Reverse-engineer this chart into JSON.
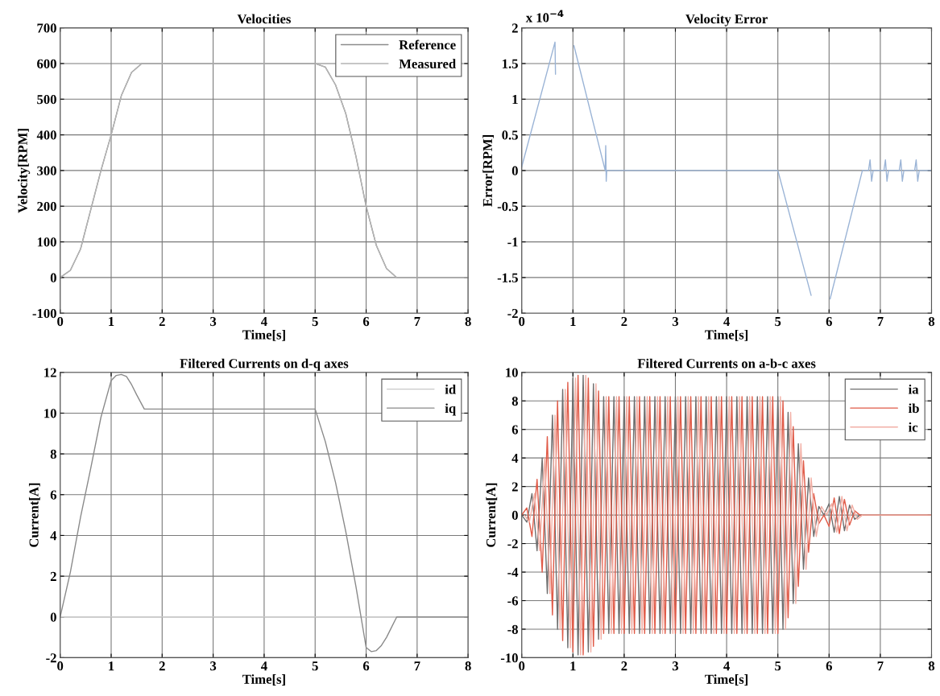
{
  "chart_data": [
    {
      "type": "line",
      "title": "Velocities",
      "xlabel": "Time[s]",
      "ylabel": "Velocity[RPM]",
      "x": [
        0,
        0.2,
        0.4,
        0.6,
        0.8,
        1.0,
        1.2,
        1.4,
        1.6,
        5.0,
        5.2,
        5.4,
        5.6,
        5.8,
        6.0,
        6.2,
        6.4,
        6.6,
        8.0
      ],
      "series": [
        {
          "name": "Reference",
          "color": "#8c8c8c",
          "values": [
            0,
            20,
            80,
            190,
            300,
            400,
            510,
            575,
            600,
            600,
            590,
            540,
            460,
            340,
            200,
            90,
            25,
            0,
            0
          ]
        },
        {
          "name": "Measured",
          "color": "#b4b4b4",
          "values": [
            0,
            20,
            80,
            190,
            300,
            400,
            510,
            575,
            600,
            600,
            590,
            540,
            460,
            340,
            200,
            90,
            25,
            0,
            0
          ]
        }
      ],
      "xlim": [
        0,
        8
      ],
      "ylim": [
        -100,
        700
      ],
      "xticks": [
        0,
        1,
        2,
        3,
        4,
        5,
        6,
        7,
        8
      ],
      "yticks": [
        -100,
        0,
        100,
        200,
        300,
        400,
        500,
        600,
        700
      ],
      "grid": true,
      "legend": "top right"
    },
    {
      "type": "line",
      "title": "Velocity Error",
      "xlabel": "Time[s]",
      "ylabel": "Error[RPM]",
      "annotations": [
        "x 10$^{−4}$"
      ],
      "x": [
        0,
        0.65,
        0.66,
        0.8,
        1.02,
        1.63,
        1.64,
        1.65,
        1.66,
        5.0,
        5.65,
        5.8,
        6.02,
        6.65,
        6.77,
        6.8,
        6.83,
        6.86,
        7.07,
        7.1,
        7.13,
        7.16,
        7.37,
        7.4,
        7.43,
        7.46,
        7.67,
        7.7,
        7.73,
        7.76,
        8.0
      ],
      "series": [
        {
          "color": "#9bb4d6",
          "values": [
            0.05,
            1.8,
            1.35,
            null,
            1.75,
            0,
            0.35,
            -0.15,
            0,
            0,
            -1.75,
            null,
            -1.8,
            0,
            0,
            0.15,
            -0.15,
            0,
            0,
            0.15,
            -0.15,
            0,
            0,
            0.15,
            -0.15,
            0,
            0,
            0.15,
            -0.15,
            0,
            0
          ]
        }
      ],
      "xlim": [
        0,
        8
      ],
      "ylim": [
        -2,
        2
      ],
      "xticks": [
        0,
        1,
        2,
        3,
        4,
        5,
        6,
        7,
        8
      ],
      "yticks": [
        -2,
        -1.5,
        -1,
        -0.5,
        0,
        0.5,
        1,
        1.5,
        2
      ],
      "grid": true
    },
    {
      "type": "line",
      "title": "Filtered Currents on d-q axes",
      "xlabel": "Time[s]",
      "ylabel": "Current[A]",
      "x": [
        0,
        0.2,
        0.4,
        0.6,
        0.8,
        1.0,
        1.1,
        1.2,
        1.3,
        1.4,
        1.5,
        1.65,
        3.0,
        5.0,
        5.2,
        5.4,
        5.6,
        5.8,
        6.0,
        6.1,
        6.2,
        6.3,
        6.4,
        6.5,
        6.6,
        8.0
      ],
      "series": [
        {
          "name": "id",
          "color": "#c8c8c8",
          "x": [
            0,
            8
          ],
          "values": [
            0,
            0
          ]
        },
        {
          "name": "iq",
          "color": "#8a8a8a",
          "values": [
            0,
            2.2,
            4.9,
            7.3,
            9.8,
            11.6,
            11.85,
            11.9,
            11.8,
            11.4,
            10.9,
            10.2,
            10.2,
            10.2,
            8.6,
            6.6,
            4.2,
            1.5,
            -1.5,
            -1.7,
            -1.65,
            -1.4,
            -1.0,
            -0.5,
            0,
            0
          ]
        }
      ],
      "xlim": [
        0,
        8
      ],
      "ylim": [
        -2,
        12
      ],
      "xticks": [
        0,
        1,
        2,
        3,
        4,
        5,
        6,
        7,
        8
      ],
      "yticks": [
        -2,
        0,
        2,
        4,
        6,
        8,
        10,
        12
      ],
      "grid": true,
      "legend": "top right"
    },
    {
      "type": "line",
      "title": "Filtered Currents on a-b-c axes",
      "xlabel": "Time[s]",
      "ylabel": "Current[A]",
      "x": [
        0,
        0.1,
        0.2,
        0.3,
        0.4,
        0.5,
        0.6,
        0.7,
        0.8,
        0.9,
        1.0,
        1.1,
        1.2,
        1.3,
        1.4,
        1.5,
        1.6,
        1.7,
        1.8,
        1.9,
        2.0,
        2.1,
        2.2,
        2.3,
        2.4,
        2.5,
        2.6,
        2.7,
        2.8,
        2.9,
        3.0,
        3.1,
        3.2,
        3.3,
        3.4,
        3.5,
        3.6,
        3.7,
        3.8,
        3.9,
        4.0,
        4.1,
        4.2,
        4.3,
        4.4,
        4.5,
        4.6,
        4.7,
        4.8,
        4.9,
        5.0,
        5.1,
        5.2,
        5.3,
        5.4,
        5.5,
        5.6,
        5.7,
        5.8,
        5.9,
        6.0,
        6.1,
        6.2,
        6.3,
        6.4,
        6.5,
        6.6,
        8.0
      ],
      "series": [
        {
          "name": "ia",
          "color": "#6e6e6e",
          "values": [
            0,
            -0.5,
            1.5,
            -2.5,
            4,
            -5.5,
            7,
            -8,
            8.8,
            -9.3,
            9.6,
            -9.8,
            9.8,
            -9.6,
            9.2,
            -8.7,
            8.3,
            -8.3,
            8.3,
            -8.3,
            8.3,
            -8.3,
            8.3,
            -8.3,
            8.3,
            -8.3,
            8.3,
            -8.3,
            8.3,
            -8.3,
            8.3,
            -8.3,
            8.3,
            -8.3,
            8.3,
            -8.3,
            8.3,
            -8.3,
            8.3,
            -8.3,
            8.3,
            -8.3,
            8.3,
            -8.3,
            8.3,
            -8.3,
            8.3,
            -8.3,
            8.3,
            -8.3,
            8.3,
            -8,
            7.2,
            -6.2,
            5,
            -3.8,
            2.6,
            -1.5,
            0.6,
            0,
            0.8,
            -1.2,
            1.3,
            -1.1,
            0.7,
            -0.3,
            0,
            0
          ]
        },
        {
          "name": "ib",
          "color": "#e05a47",
          "values": [
            0,
            0.5,
            -1.5,
            2.5,
            -4,
            5.5,
            -7,
            8,
            -8.8,
            9.3,
            -9.6,
            9.8,
            -9.8,
            9.6,
            -9.2,
            8.7,
            -8.3,
            8.3,
            -8.3,
            8.3,
            -8.3,
            8.3,
            -8.3,
            8.3,
            -8.3,
            8.3,
            -8.3,
            8.3,
            -8.3,
            8.3,
            -8.3,
            8.3,
            -8.3,
            8.3,
            -8.3,
            8.3,
            -8.3,
            8.3,
            -8.3,
            8.3,
            -8.3,
            8.3,
            -8.3,
            8.3,
            -8.3,
            8.3,
            -8.3,
            8.3,
            -8.3,
            8.3,
            -8.3,
            8,
            -7.2,
            6.2,
            -5,
            3.8,
            -2.6,
            1.5,
            -0.6,
            0,
            -0.8,
            1.2,
            -1.3,
            1.1,
            -0.7,
            0.3,
            0,
            0
          ]
        },
        {
          "name": "ic",
          "color": "#f2b0a6",
          "x": [
            0.05,
            0.15,
            0.25,
            0.35,
            0.45,
            0.55,
            0.65,
            0.75,
            0.85,
            0.95,
            1.05,
            1.15,
            1.25,
            1.35,
            1.45,
            1.55,
            1.65,
            1.75,
            1.85,
            1.95,
            2.05,
            2.15,
            2.25,
            2.35,
            2.45,
            2.55,
            2.65,
            2.75,
            2.85,
            2.95,
            3.05,
            3.15,
            3.25,
            3.35,
            3.45,
            3.55,
            3.65,
            3.75,
            3.85,
            3.95,
            4.05,
            4.15,
            4.25,
            4.35,
            4.45,
            4.55,
            4.65,
            4.75,
            4.85,
            4.95,
            5.05,
            5.15,
            5.25,
            5.35,
            5.45,
            5.55,
            5.65,
            5.75,
            5.85,
            5.95,
            6.05,
            6.15,
            6.25,
            6.35,
            6.45,
            6.55,
            6.65,
            8.0
          ],
          "values": [
            0,
            -0.5,
            1.5,
            -2.5,
            4,
            -5.5,
            7,
            -8,
            8.8,
            -9.3,
            9.6,
            -9.8,
            9.8,
            -9.6,
            9.2,
            -8.7,
            8.3,
            -8.3,
            8.3,
            -8.3,
            8.3,
            -8.3,
            8.3,
            -8.3,
            8.3,
            -8.3,
            8.3,
            -8.3,
            8.3,
            -8.3,
            8.3,
            -8.3,
            8.3,
            -8.3,
            8.3,
            -8.3,
            8.3,
            -8.3,
            8.3,
            -8.3,
            8.3,
            -8.3,
            8.3,
            -8.3,
            8.3,
            -8.3,
            8.3,
            -8.3,
            8.3,
            -8.3,
            8.3,
            -8,
            7.2,
            -6.2,
            5,
            -3.8,
            2.6,
            -1.5,
            0.6,
            0,
            0.8,
            -1.2,
            1.3,
            -1.1,
            0.7,
            -0.3,
            0,
            0
          ]
        }
      ],
      "xlim": [
        0,
        8
      ],
      "ylim": [
        -10,
        10
      ],
      "xticks": [
        0,
        1,
        2,
        3,
        4,
        5,
        6,
        7,
        8
      ],
      "yticks": [
        -10,
        -8,
        -6,
        -4,
        -2,
        0,
        2,
        4,
        6,
        8,
        10
      ],
      "grid": true,
      "legend": "top right"
    }
  ]
}
